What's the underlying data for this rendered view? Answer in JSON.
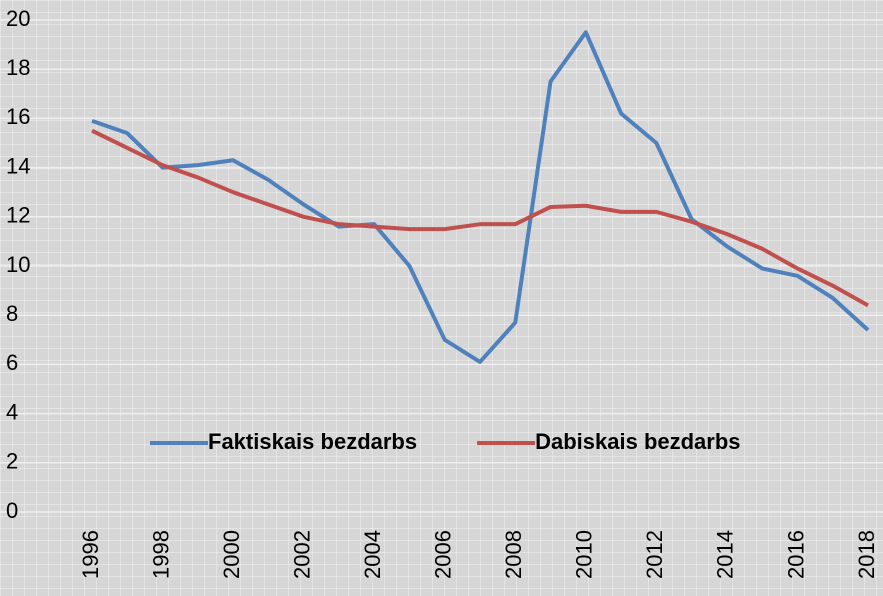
{
  "chart_data": {
    "type": "line",
    "x": [
      1996,
      1997,
      1998,
      1999,
      2000,
      2001,
      2002,
      2003,
      2004,
      2005,
      2006,
      2007,
      2008,
      2009,
      2010,
      2011,
      2012,
      2013,
      2014,
      2015,
      2016,
      2017,
      2018
    ],
    "series": [
      {
        "name": "Faktiskais bezdarbs",
        "color": "#4f81bd",
        "values": [
          15.9,
          15.4,
          14.0,
          14.1,
          14.3,
          13.5,
          12.5,
          11.6,
          11.7,
          10.0,
          7.0,
          6.1,
          7.7,
          17.5,
          19.5,
          16.2,
          15.0,
          11.9,
          10.8,
          9.9,
          9.6,
          8.7,
          7.4
        ]
      },
      {
        "name": "Dabiskais bezdarbs",
        "color": "#c0504d",
        "values": [
          15.5,
          14.8,
          14.1,
          13.6,
          13.0,
          12.5,
          12.0,
          11.7,
          11.6,
          11.5,
          11.5,
          11.7,
          11.7,
          12.4,
          12.45,
          12.2,
          12.2,
          11.8,
          11.3,
          10.7,
          9.9,
          9.2,
          8.4
        ]
      }
    ],
    "xlim": [
      1996,
      2018
    ],
    "xticks": [
      1996,
      1998,
      2000,
      2002,
      2004,
      2006,
      2008,
      2010,
      2012,
      2014,
      2016,
      2018
    ],
    "ylim": [
      0,
      20
    ],
    "yticks": [
      0,
      2,
      4,
      6,
      8,
      10,
      12,
      14,
      16,
      18,
      20
    ],
    "grid": true,
    "legend": "lower center"
  }
}
